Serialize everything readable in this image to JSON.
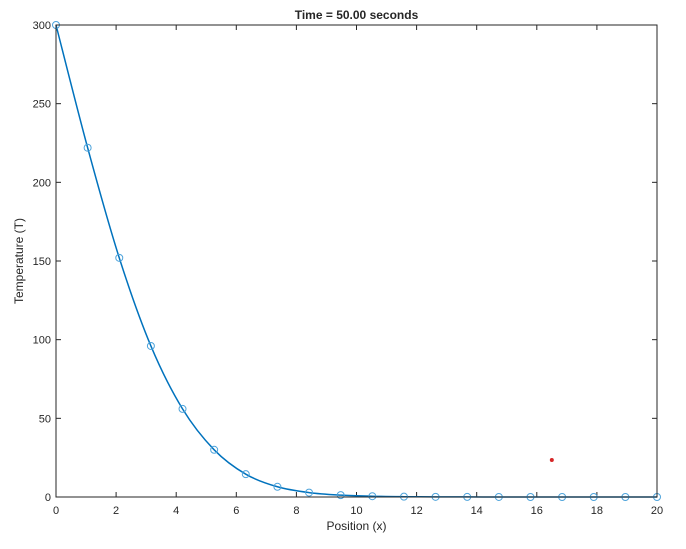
{
  "chart_data": {
    "type": "line",
    "title": "Time = 50.00 seconds",
    "xlabel": "Position (x)",
    "ylabel": "Temperature (T)",
    "xlim": [
      0,
      20
    ],
    "ylim": [
      0,
      300
    ],
    "xticks": [
      "0",
      "2",
      "4",
      "6",
      "8",
      "10",
      "12",
      "14",
      "16",
      "18",
      "20"
    ],
    "yticks": [
      "0",
      "50",
      "100",
      "150",
      "200",
      "250",
      "300"
    ],
    "grid": false,
    "colors": {
      "line": "#0072BD",
      "marker": "#4DA3DB",
      "highlight": "#D62728"
    },
    "series": [
      {
        "style": "line-with-circle-markers",
        "x": [
          0,
          1.0526,
          2.1053,
          3.1579,
          4.2105,
          5.2632,
          6.3158,
          7.3684,
          8.4211,
          9.4737,
          10.5263,
          11.5789,
          12.6316,
          13.6842,
          14.7368,
          15.7895,
          16.8421,
          17.8947,
          18.9474,
          20
        ],
        "y": [
          300,
          222,
          152,
          96,
          56,
          30,
          14.5,
          6.5,
          2.8,
          1.2,
          0.5,
          0.2,
          0.1,
          0.05,
          0.02,
          0.01,
          0,
          0,
          0,
          0
        ]
      }
    ],
    "highlight_point": {
      "x": 16.5,
      "y": 23.5
    }
  }
}
